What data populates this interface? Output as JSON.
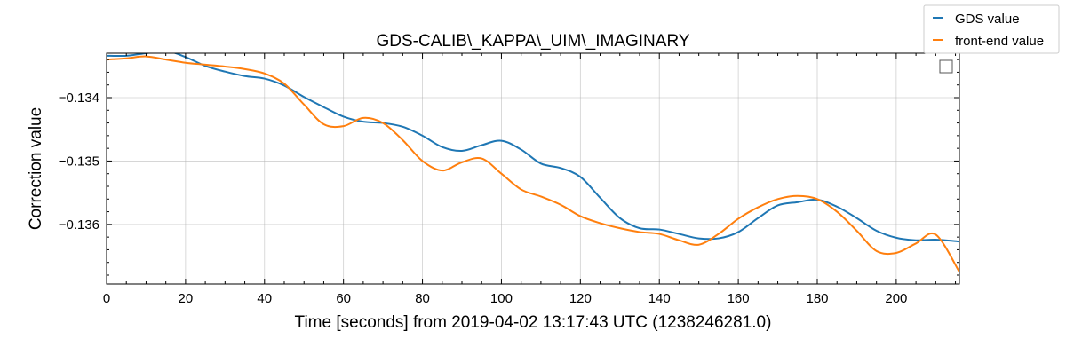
{
  "chart_data": {
    "type": "line",
    "title": "GDS-CALIB\\_KAPPA\\_UIM\\_IMAGINARY",
    "xlabel": "Time [seconds] from 2019-04-02 13:17:43 UTC (1238246281.0)",
    "ylabel": "Correction value",
    "xlim": [
      0,
      216
    ],
    "ylim": [
      -0.13694,
      -0.1333
    ],
    "x_ticks": [
      0,
      20,
      40,
      60,
      80,
      100,
      120,
      140,
      160,
      180,
      200
    ],
    "x_tick_labels": [
      "0",
      "20",
      "40",
      "60",
      "80",
      "100",
      "120",
      "140",
      "160",
      "180",
      "200"
    ],
    "y_ticks": [
      -0.134,
      -0.135,
      -0.136
    ],
    "y_tick_labels": [
      "−0.134",
      "−0.135",
      "−0.136"
    ],
    "grid": true,
    "legend_placement": "top-right-outside",
    "series": [
      {
        "name": "GDS value",
        "color": "#1f77b4",
        "x": [
          0,
          5,
          10,
          15,
          20,
          25,
          30,
          35,
          40,
          45,
          50,
          55,
          60,
          65,
          70,
          75,
          80,
          85,
          90,
          95,
          100,
          105,
          110,
          115,
          120,
          125,
          130,
          135,
          140,
          145,
          150,
          155,
          160,
          165,
          170,
          175,
          180,
          185,
          190,
          195,
          200,
          205,
          210,
          216
        ],
        "y": [
          -0.13334,
          -0.13334,
          -0.1333,
          -0.13326,
          -0.13336,
          -0.1335,
          -0.13359,
          -0.13366,
          -0.1337,
          -0.13381,
          -0.13399,
          -0.13415,
          -0.1343,
          -0.13438,
          -0.1344,
          -0.13446,
          -0.1346,
          -0.13478,
          -0.13484,
          -0.13475,
          -0.13468,
          -0.13482,
          -0.13504,
          -0.13511,
          -0.13525,
          -0.13558,
          -0.1359,
          -0.13606,
          -0.13608,
          -0.13615,
          -0.13622,
          -0.13622,
          -0.13612,
          -0.1359,
          -0.1357,
          -0.13565,
          -0.13561,
          -0.13572,
          -0.1359,
          -0.1361,
          -0.13621,
          -0.13625,
          -0.13624,
          -0.13627
        ]
      },
      {
        "name": "front-end value",
        "color": "#ff7f0e",
        "x": [
          0,
          5,
          10,
          15,
          20,
          25,
          30,
          35,
          40,
          45,
          50,
          55,
          60,
          65,
          70,
          75,
          80,
          85,
          90,
          95,
          100,
          105,
          110,
          115,
          120,
          125,
          130,
          135,
          140,
          145,
          150,
          155,
          160,
          165,
          170,
          175,
          180,
          185,
          190,
          195,
          200,
          205,
          210,
          216
        ],
        "y": [
          -0.1334,
          -0.13338,
          -0.13335,
          -0.1334,
          -0.13345,
          -0.13348,
          -0.13351,
          -0.13355,
          -0.13362,
          -0.13378,
          -0.13411,
          -0.13442,
          -0.13445,
          -0.13432,
          -0.1344,
          -0.13467,
          -0.135,
          -0.13515,
          -0.13502,
          -0.13496,
          -0.1352,
          -0.13545,
          -0.13556,
          -0.13569,
          -0.13587,
          -0.13598,
          -0.13606,
          -0.13612,
          -0.13615,
          -0.13625,
          -0.13632,
          -0.13615,
          -0.13591,
          -0.13573,
          -0.1356,
          -0.13555,
          -0.1356,
          -0.1358,
          -0.1361,
          -0.13642,
          -0.13645,
          -0.1363,
          -0.13616,
          -0.13675
        ]
      }
    ]
  }
}
